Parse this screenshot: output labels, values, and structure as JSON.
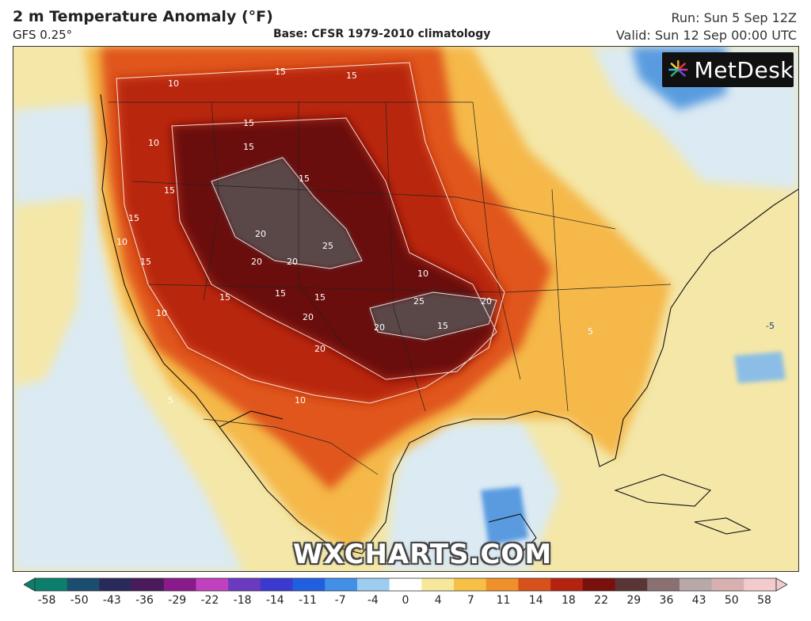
{
  "header": {
    "title": "2 m Temperature Anomaly (°F)",
    "model": "GFS 0.25°",
    "base": "Base: CFSR 1979-2010 climatology",
    "run": "Run: Sun 5 Sep 12Z",
    "valid": "Valid: Sun 12 Sep 00:00 UTC"
  },
  "logo": {
    "text": "MetDesk",
    "icon": "metdesk-logo-icon"
  },
  "watermark": "WXCHARTS.COM",
  "map": {
    "region": "North America",
    "contour_labels": [
      "15",
      "10",
      "5",
      "20",
      "25"
    ],
    "colors": {
      "cold": "#5a9be0",
      "cool": "#dbeaf3",
      "neutral": "#f4e7a8",
      "warm": "#f5b84a",
      "hot": "#e0571d",
      "very_hot": "#b8260f",
      "extreme": "#6b0f0d",
      "peak": "#5a4646"
    }
  },
  "colorbar": {
    "labels": [
      "-58",
      "-50",
      "-43",
      "-36",
      "-29",
      "-22",
      "-18",
      "-14",
      "-11",
      "-7",
      "-4",
      "0",
      "4",
      "7",
      "11",
      "14",
      "18",
      "22",
      "29",
      "36",
      "43",
      "50",
      "58"
    ],
    "colors": [
      "#0a7f6c",
      "#1a4d6e",
      "#2a2a5a",
      "#4a1a5a",
      "#8a1a8a",
      "#c040c0",
      "#6a3ac0",
      "#3a3ad0",
      "#2060e0",
      "#4090e8",
      "#9ccdf0",
      "#ffffff",
      "#f6e79a",
      "#f5c045",
      "#f0902a",
      "#d8501a",
      "#b42210",
      "#7a100c",
      "#5a3535",
      "#8a7070",
      "#b8a8a8",
      "#d8b0b0",
      "#f2cccc"
    ]
  }
}
